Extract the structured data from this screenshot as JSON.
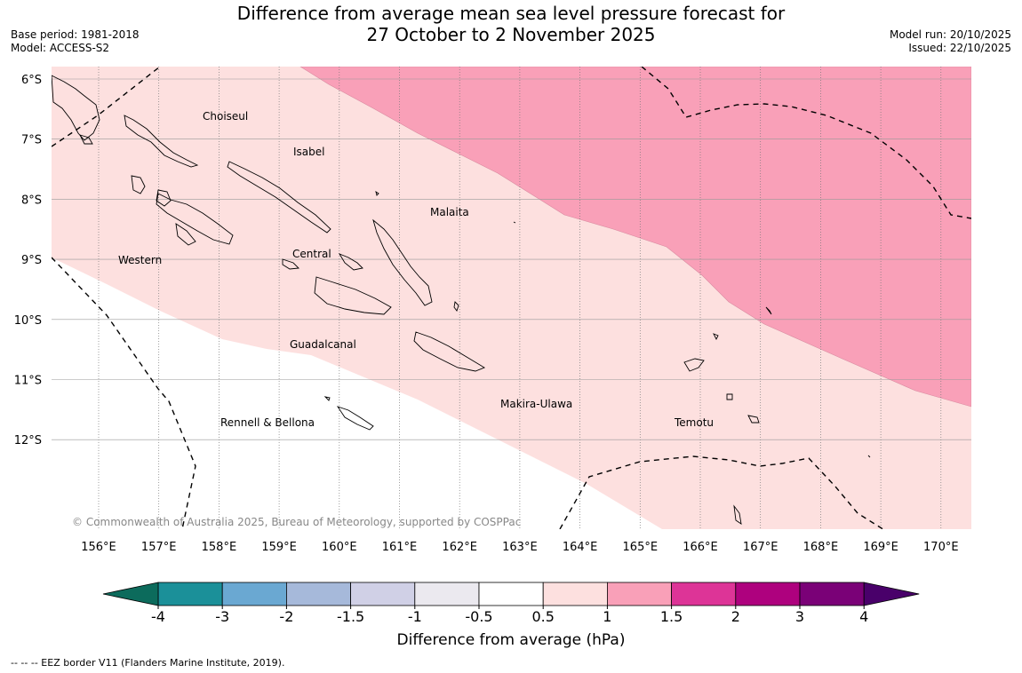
{
  "header": {
    "title_line1": "Difference from average mean sea level pressure forecast for",
    "title_line2": "27 October to 2 November 2025",
    "base_period": "Base period: 1981-2018",
    "model": "Model: ACCESS-S2",
    "model_run": "Model run: 20/10/2025",
    "issued": "Issued: 22/10/2025"
  },
  "map": {
    "lat_labels": [
      "6°S",
      "7°S",
      "8°S",
      "9°S",
      "10°S",
      "11°S",
      "12°S"
    ],
    "lon_labels": [
      "156°E",
      "157°E",
      "158°E",
      "159°E",
      "160°E",
      "161°E",
      "162°E",
      "163°E",
      "164°E",
      "165°E",
      "166°E",
      "167°E",
      "168°E",
      "169°E",
      "170°E"
    ],
    "region_labels": [
      "Choiseul",
      "Isabel",
      "Malaita",
      "Western",
      "Central",
      "Guadalcanal",
      "Makira-Ulawa",
      "Rennell & Bellona",
      "Temotu"
    ],
    "copyright": "© Commonwealth of Australia 2025, Bureau of Meteorology, supported by COSPPac",
    "colors": {
      "band_05_1": "#fde0df",
      "band_1_15": "#f9a0b8",
      "gridline": "#888888",
      "coast": "#000000"
    }
  },
  "colorbar": {
    "label": "Difference from average (hPa)",
    "ticks": [
      "-4",
      "-3",
      "-2",
      "-1.5",
      "-1",
      "-0.5",
      "0.5",
      "1",
      "1.5",
      "2",
      "3",
      "4"
    ],
    "colors": [
      "#1b9099",
      "#6aa8d2",
      "#a6b9da",
      "#d0d0e6",
      "#ebe9ef",
      "#ffffff",
      "#fde0df",
      "#f9a0b8",
      "#dd3497",
      "#ae017e",
      "#7a0177"
    ],
    "under_color": "#0c6b5c",
    "over_color": "#49006a"
  },
  "footer": {
    "legend": "--  --  -- EEZ border V11 (Flanders Marine Institute, 2019)."
  }
}
